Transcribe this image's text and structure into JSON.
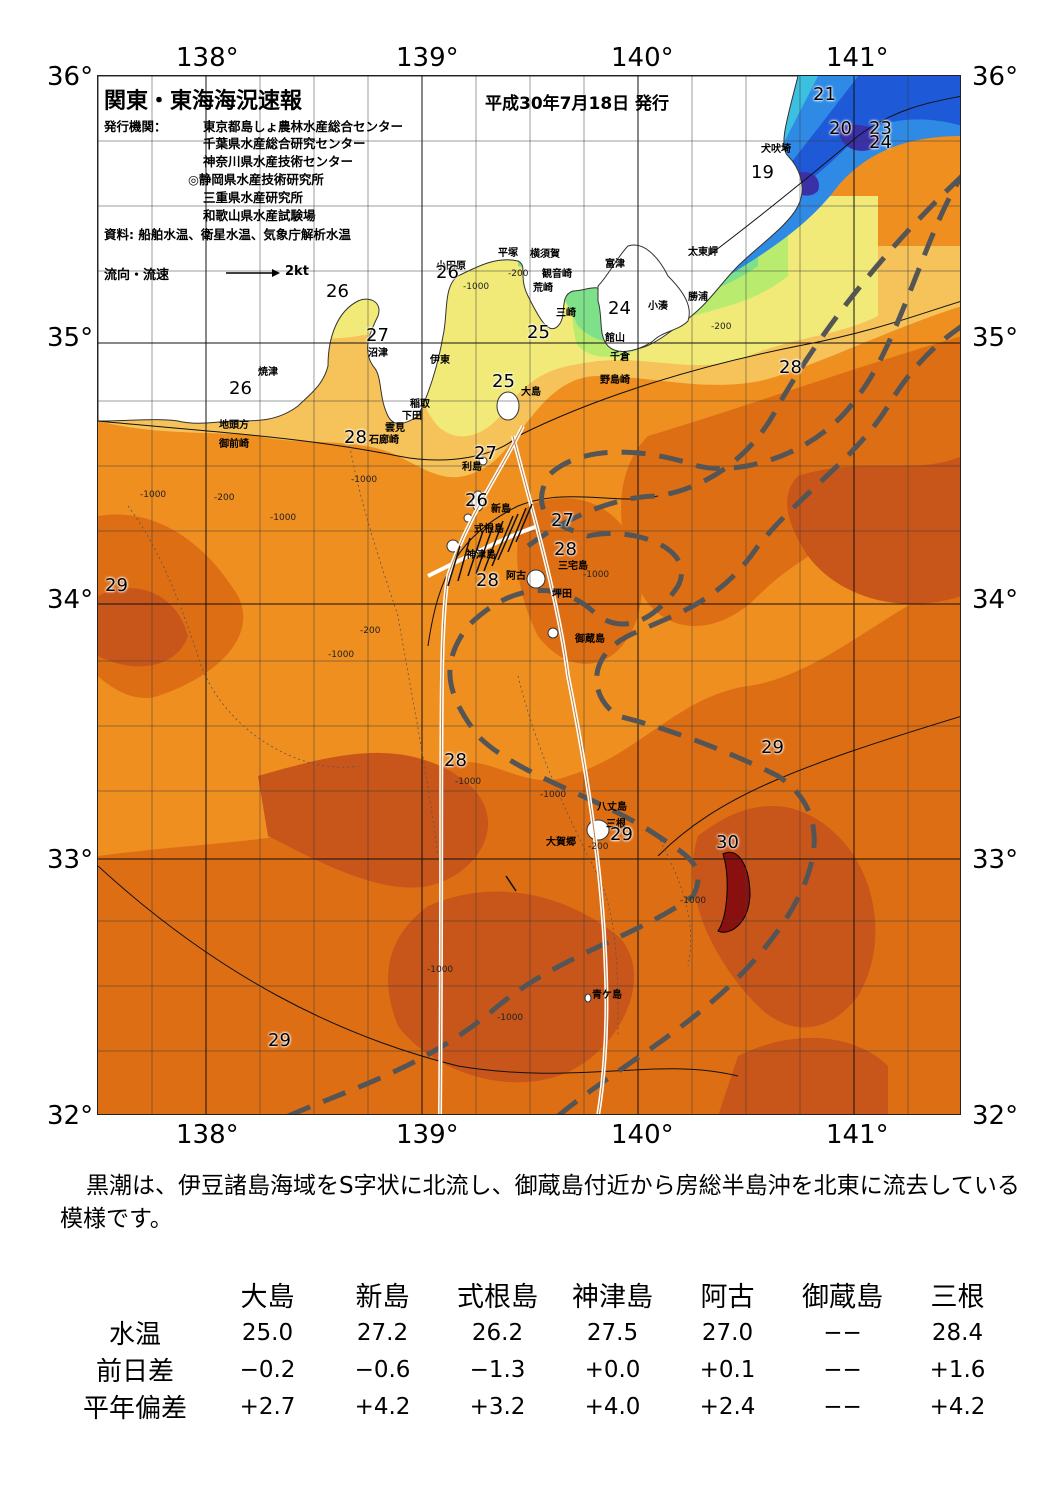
{
  "header": {
    "title": "関東・東海海況速報",
    "issue_date": "平成30年7月18日 発行"
  },
  "publishers": {
    "label": "発行機関：",
    "names": [
      "東京都島しょ農林水産総合センター",
      "千葉県水産総合研究センター",
      "神奈川県水産技術センター",
      "◎静岡県水産技術研究所",
      "三重県水産研究所",
      "和歌山県水産試験場"
    ],
    "sources": "資料: 船舶水温、衛星水温、気象庁解析水温"
  },
  "legend": {
    "current_label": "流向・流速",
    "scale_label": "2kt"
  },
  "axes": {
    "lon_ticks": [
      "138°",
      "139°",
      "140°",
      "141°"
    ],
    "lat_ticks": [
      "36°",
      "35°",
      "34°",
      "33°",
      "32°"
    ]
  },
  "map": {
    "type": "sea surface temperature map",
    "lon_range": [
      137.5,
      141.5
    ],
    "lat_range": [
      32.0,
      36.0
    ],
    "colors": {
      "sst_19": "#3a30a8",
      "sst_20": "#1e5ad8",
      "sst_21_22": "#2f8ae6",
      "sst_23": "#3cc0e0",
      "sst_24": "#7fe08a",
      "sst_25": "#b9ec6e",
      "sst_26": "#f1ea78",
      "sst_27": "#f6c25a",
      "sst_28": "#ef8f1f",
      "sst_29": "#de6e14",
      "sst_29_5": "#c8561a",
      "sst_30": "#8a0f0f",
      "land": "#ffffff",
      "kuroshio_axis": "#555555",
      "ship_track": "#ffffff"
    },
    "place_names": [
      "犬吠埼",
      "太東岬",
      "勝浦",
      "小湊",
      "富津",
      "横須賀",
      "観音崎",
      "平塚",
      "小田原",
      "荒崎",
      "三崎",
      "館山",
      "千倉",
      "野島崎",
      "大島",
      "伊東",
      "沼津",
      "焼津",
      "稲取",
      "下田",
      "雲見",
      "石廊崎",
      "地頭方",
      "御前崎",
      "利島",
      "新島",
      "式根島",
      "神津島",
      "阿古",
      "三宅島",
      "坪田",
      "御蔵島",
      "八丈島",
      "三根",
      "大賀郷",
      "青ケ島"
    ],
    "temperature_labels": [
      "21",
      "20",
      "23",
      "24",
      "19",
      "26",
      "26",
      "27",
      "24",
      "25",
      "28",
      "26",
      "25",
      "28",
      "27",
      "26",
      "27",
      "28",
      "28",
      "29",
      "29",
      "28",
      "29",
      "30",
      "29"
    ],
    "depth_labels": [
      "-200",
      "-1000"
    ],
    "kuroshio_description": "S-shaped northward flow through Izu Islands, then north-east off Boso Peninsula"
  },
  "summary": "黒潮は、伊豆諸島海域をS字状に北流し、御蔵島付近から房総半島沖を北東に流去している模様です。",
  "observations": {
    "stations": [
      "大島",
      "新島",
      "式根島",
      "神津島",
      "阿古",
      "御蔵島",
      "三根"
    ],
    "rows": [
      {
        "label": "水温",
        "values": [
          "25.0",
          "27.2",
          "26.2",
          "27.5",
          "27.0",
          "−−",
          "28.4"
        ]
      },
      {
        "label": "前日差",
        "values": [
          "−0.2",
          "−0.6",
          "−1.3",
          "+0.0",
          "+0.1",
          "−−",
          "+1.6"
        ]
      },
      {
        "label": "平年偏差",
        "values": [
          "+2.7",
          "+4.2",
          "+3.2",
          "+4.0",
          "+2.4",
          "−−",
          "+4.2"
        ]
      }
    ]
  }
}
